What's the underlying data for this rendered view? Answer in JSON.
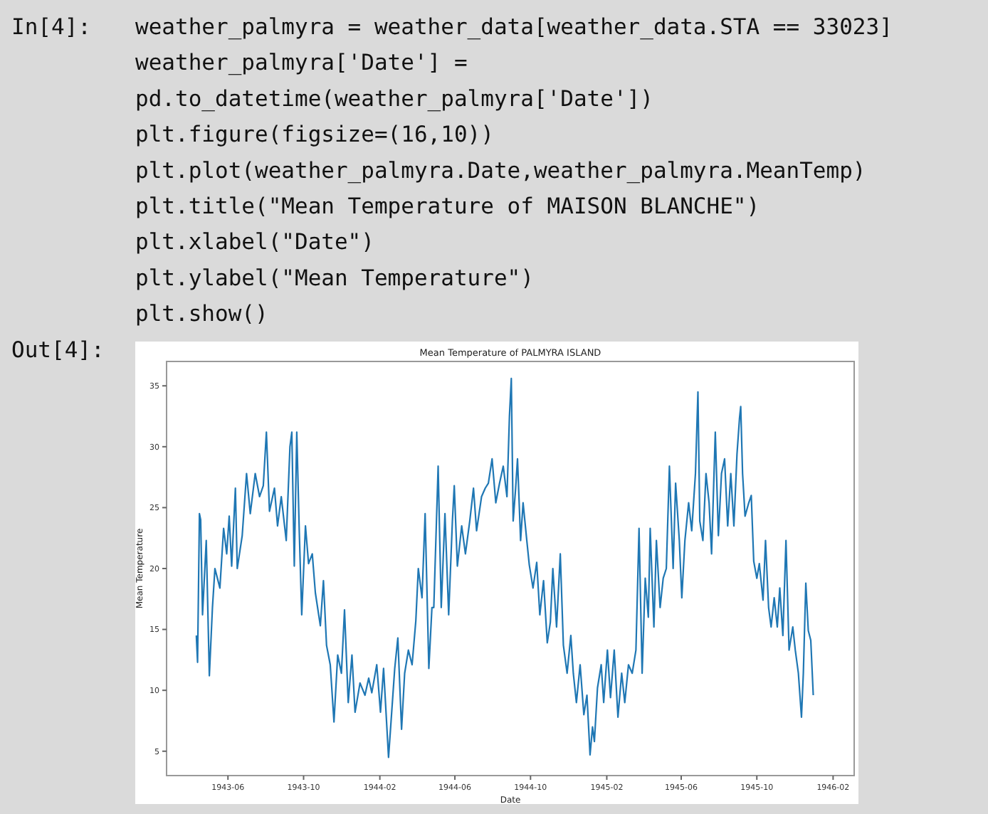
{
  "chart_data": {
    "type": "line",
    "title": "Mean Temperature of PALMYRA ISLAND",
    "xlabel": "Date",
    "ylabel": "Mean Temperature",
    "annotations": [
      "In[4]:",
      "weather_palmyra = weather_data[weather_data.STA == 33023]",
      "weather_palmyra['Date'] =",
      "pd.to_datetime(weather_palmyra['Date'])",
      "plt.figure(figsize=(16,10))",
      "plt.plot(weather_palmyra.Date,weather_palmyra.MeanTemp)",
      "plt.title(\"Mean Temperature of MAISON BLANCHE\")",
      "plt.xlabel(\"Date\")",
      "plt.ylabel(\"Mean Temperature\")",
      "plt.show()",
      "Out[4]:"
    ],
    "xlim": [
      "1943-02-22",
      "1946-03-07"
    ],
    "ylim": [
      3,
      37
    ],
    "xticks": [
      "1943-06",
      "1943-10",
      "1944-02",
      "1944-06",
      "1944-10",
      "1945-02",
      "1945-06",
      "1945-10",
      "1946-02"
    ],
    "yticks": [
      5,
      10,
      15,
      20,
      25,
      30,
      35
    ],
    "grid": false,
    "series": [
      {
        "color": "#1f77b4",
        "x": [
          "1943-04-11",
          "1943-04-13",
          "1943-04-16",
          "1943-04-18",
          "1943-04-21",
          "1943-04-27",
          "1943-05-02",
          "1943-05-07",
          "1943-05-11",
          "1943-05-19",
          "1943-05-25",
          "1943-05-30",
          "1943-06-03",
          "1943-06-07",
          "1943-06-13",
          "1943-06-16",
          "1943-06-24",
          "1943-07-01",
          "1943-07-07",
          "1943-07-15",
          "1943-07-22",
          "1943-07-28",
          "1943-08-02",
          "1943-08-07",
          "1943-08-15",
          "1943-08-20",
          "1943-08-26",
          "1943-09-03",
          "1943-09-09",
          "1943-09-12",
          "1943-09-16",
          "1943-09-20",
          "1943-09-24",
          "1943-09-28",
          "1943-10-04",
          "1943-10-09",
          "1943-10-15",
          "1943-10-20",
          "1943-10-28",
          "1943-11-02",
          "1943-11-07",
          "1943-11-13",
          "1943-11-19",
          "1943-11-25",
          "1943-12-01",
          "1943-12-06",
          "1943-12-12",
          "1943-12-18",
          "1943-12-23",
          "1943-12-31",
          "1944-01-08",
          "1944-01-14",
          "1944-01-19",
          "1944-01-27",
          "1944-02-02",
          "1944-02-07",
          "1944-02-15",
          "1944-02-19",
          "1944-02-25",
          "1944-03-01",
          "1944-03-07",
          "1944-03-12",
          "1944-03-18",
          "1944-03-24",
          "1944-03-30",
          "1944-04-03",
          "1944-04-09",
          "1944-04-14",
          "1944-04-20",
          "1944-04-25",
          "1944-04-28",
          "1944-05-05",
          "1944-05-10",
          "1944-05-16",
          "1944-05-22",
          "1944-05-28",
          "1944-05-31",
          "1944-06-05",
          "1944-06-12",
          "1944-06-18",
          "1944-06-25",
          "1944-07-01",
          "1944-07-06",
          "1944-07-14",
          "1944-07-20",
          "1944-07-25",
          "1944-07-31",
          "1944-08-06",
          "1944-08-12",
          "1944-08-18",
          "1944-08-24",
          "1944-08-28",
          "1944-08-31",
          "1944-09-03",
          "1944-09-07",
          "1944-09-10",
          "1944-09-15",
          "1944-09-19",
          "1944-09-25",
          "1944-09-29",
          "1944-10-05",
          "1944-10-11",
          "1944-10-16",
          "1944-10-22",
          "1944-10-28",
          "1944-11-02",
          "1944-11-06",
          "1944-11-12",
          "1944-11-18",
          "1944-11-23",
          "1944-11-29",
          "1944-12-05",
          "1944-12-09",
          "1944-12-14",
          "1944-12-20",
          "1944-12-26",
          "1944-12-31",
          "1945-01-05",
          "1945-01-09",
          "1945-01-12",
          "1945-01-17",
          "1945-01-23",
          "1945-01-27",
          "1945-02-02",
          "1945-02-07",
          "1945-02-13",
          "1945-02-19",
          "1945-02-25",
          "1945-03-02",
          "1945-03-08",
          "1945-03-14",
          "1945-03-20",
          "1945-03-25",
          "1945-03-30",
          "1945-04-04",
          "1945-04-09",
          "1945-04-12",
          "1945-04-18",
          "1945-04-22",
          "1945-04-28",
          "1945-05-03",
          "1945-05-08",
          "1945-05-13",
          "1945-05-19",
          "1945-05-23",
          "1945-05-29",
          "1945-06-02",
          "1945-06-07",
          "1945-06-13",
          "1945-06-18",
          "1945-06-24",
          "1945-06-28",
          "1945-07-01",
          "1945-07-06",
          "1945-07-11",
          "1945-07-16",
          "1945-07-20",
          "1945-07-26",
          "1945-07-31",
          "1945-08-05",
          "1945-08-10",
          "1945-08-15",
          "1945-08-20",
          "1945-08-25",
          "1945-08-30",
          "1945-09-03",
          "1945-09-05",
          "1945-09-08",
          "1945-09-12",
          "1945-09-18",
          "1945-09-22",
          "1945-09-26",
          "1945-10-01",
          "1945-10-05",
          "1945-10-11",
          "1945-10-15",
          "1945-10-20",
          "1945-10-24",
          "1945-10-29",
          "1945-11-03",
          "1945-11-07",
          "1945-11-12",
          "1945-11-17",
          "1945-11-22",
          "1945-11-28",
          "1945-12-02",
          "1945-12-07",
          "1945-12-12",
          "1945-12-15",
          "1945-12-19",
          "1945-12-23",
          "1945-12-27",
          "1945-12-31"
        ],
        "values": [
          14.5,
          12.3,
          24.5,
          24,
          16.2,
          22.3,
          11.2,
          16.8,
          20,
          18.4,
          23.3,
          21.2,
          24.3,
          20.2,
          26.6,
          20,
          22.7,
          27.8,
          24.5,
          27.8,
          25.9,
          26.8,
          31.2,
          24.7,
          26.6,
          23.5,
          25.9,
          22.3,
          30,
          31.2,
          20.2,
          31.2,
          23.1,
          16.2,
          23.5,
          20.4,
          21.2,
          18,
          15.3,
          19,
          13.7,
          12.1,
          7.4,
          12.9,
          11.4,
          16.6,
          9,
          12.9,
          8.2,
          10.6,
          9.6,
          11,
          9.8,
          12.1,
          8.2,
          11.8,
          4.5,
          7.4,
          11.8,
          14.3,
          6.8,
          11.4,
          13.3,
          12.1,
          15.7,
          20,
          17.6,
          24.5,
          11.8,
          16.8,
          16.8,
          28.4,
          16.8,
          24.5,
          16.2,
          23.9,
          26.8,
          20.2,
          23.5,
          21.2,
          23.9,
          26.6,
          23.1,
          25.9,
          26.6,
          27,
          29,
          25.4,
          27,
          28.4,
          25.9,
          32.5,
          35.6,
          23.9,
          26.6,
          29,
          22.3,
          25.4,
          22.3,
          20.3,
          18.4,
          20.5,
          16.2,
          19,
          13.9,
          15.6,
          20,
          15.2,
          21.2,
          13.7,
          11.4,
          14.5,
          11.4,
          9,
          12.1,
          8,
          9.6,
          4.7,
          7,
          5.8,
          10.2,
          12.1,
          9,
          13.3,
          9.4,
          13.3,
          7.8,
          11.4,
          9,
          12.1,
          11.4,
          13.3,
          23.3,
          11.4,
          19.2,
          16,
          23.3,
          15.2,
          22.3,
          16.8,
          19.2,
          20,
          28.4,
          20,
          27,
          22.3,
          17.6,
          22.3,
          25.4,
          23.1,
          27.8,
          34.5,
          23.9,
          22.3,
          27.8,
          25.4,
          21.2,
          31.2,
          22.7,
          27.8,
          29,
          23.5,
          27.8,
          23.5,
          29.4,
          32.3,
          33.3,
          27.8,
          24.3,
          25.4,
          26,
          20.6,
          19.2,
          20.4,
          17.4,
          22.3,
          16.8,
          15.2,
          17.6,
          15.2,
          18.4,
          14.5,
          22.3,
          13.3,
          15.2,
          13.3,
          11.4,
          7.8,
          11.4,
          18.8,
          14.9,
          14.1,
          9.6
        ]
      }
    ]
  }
}
